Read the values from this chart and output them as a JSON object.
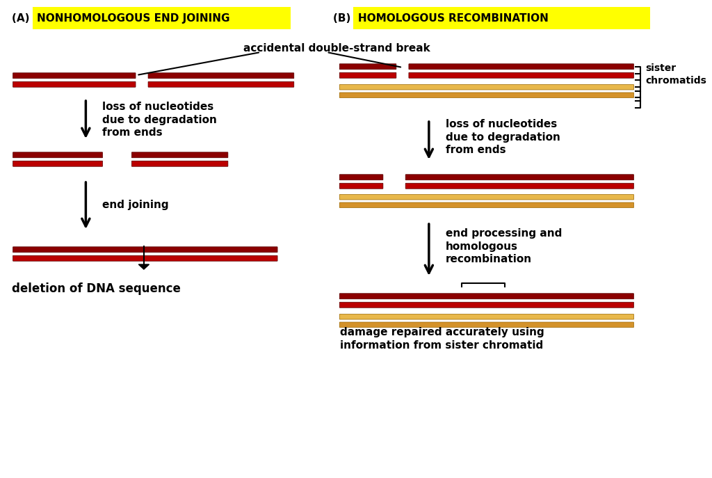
{
  "bg_color": "#ffffff",
  "dark_red": "#8B0000",
  "mid_red": "#CC0000",
  "light_red_line": "#ff6666",
  "gold": "#DAA520",
  "light_gold": "#F5C842",
  "yellow_highlight": "#FFFF00",
  "text_color": "#000000",
  "title_A": "(A)  NONHOMOLOGOUS END JOINING",
  "title_B": "(B)  HOMOLOGOUS RECOMBINATION",
  "label_break": "accidental double-strand break",
  "label_loss_A": "loss of nucleotides\ndue to degradation\nfrom ends",
  "label_end_joining": "end joining",
  "label_deletion": "deletion of DNA sequence",
  "label_loss_B": "loss of nucleotides\ndue to degradation\nfrom ends",
  "label_end_proc": "end processing and\nhomologous\nrecombination",
  "label_sister": "sister\nchromatids",
  "label_damage": "damage repaired accurately using\ninformation from sister chromatid"
}
